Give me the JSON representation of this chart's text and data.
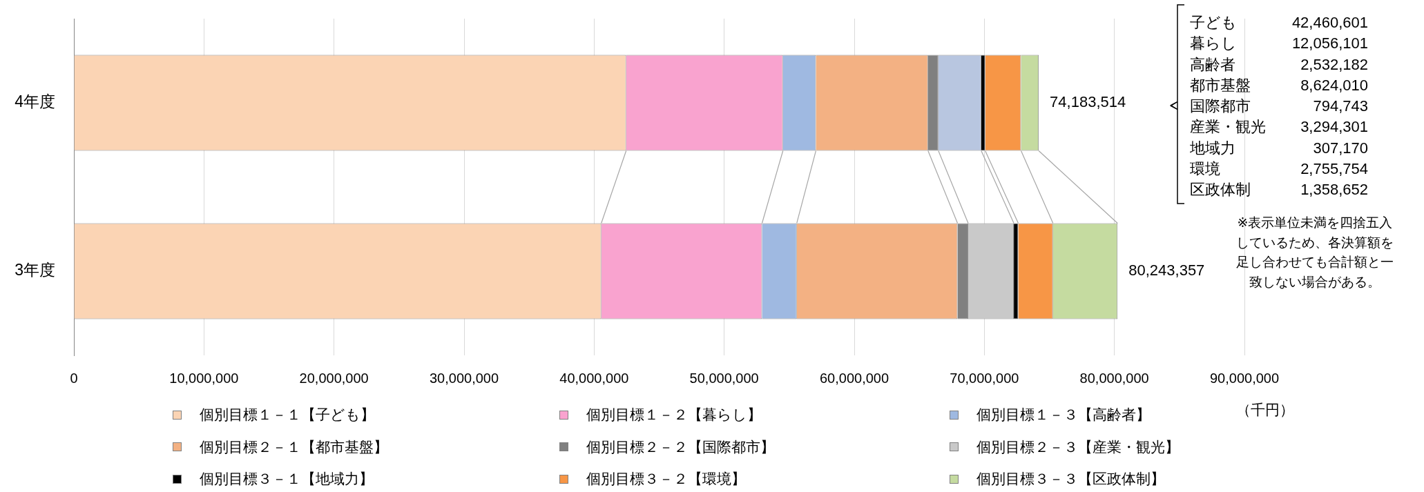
{
  "chart_data": {
    "type": "bar",
    "orientation": "horizontal",
    "stacked": true,
    "categories": [
      "4年度",
      "3年度"
    ],
    "xlim": [
      0,
      90000000
    ],
    "xticks": [
      0,
      {
        "value": 10000000,
        "label": "10,000,000"
      },
      {
        "value": 20000000,
        "label": "20,000,000"
      },
      {
        "value": 30000000,
        "label": "30,000,000"
      },
      {
        "value": 40000000,
        "label": "40,000,000"
      },
      {
        "value": 50000000,
        "label": "50,000,000"
      },
      {
        "value": 60000000,
        "label": "60,000,000"
      },
      {
        "value": 70000000,
        "label": "70,000,000"
      },
      {
        "value": 80000000,
        "label": "80,000,000"
      },
      {
        "value": 90000000,
        "label": "90,000,000"
      }
    ],
    "xlabel": "（千円）",
    "grid": "x",
    "legend": "bottom",
    "series": [
      {
        "name": "個別目標１－１【子ども】",
        "color": "#fbd4b4",
        "values": [
          42460601,
          40550000
        ]
      },
      {
        "name": "個別目標１－２【暮らし】",
        "color": "#f9a3cf",
        "values": [
          12056101,
          12360000
        ]
      },
      {
        "name": "個別目標１－３【高齢者】",
        "color": "#9fb9e1",
        "values": [
          2532182,
          2670000
        ]
      },
      {
        "name": "個別目標２－１【都市基盤】",
        "color": "#f3b183",
        "values": [
          8624010,
          12360000
        ]
      },
      {
        "name": "個別目標２－２【国際都市】",
        "color": "#808080",
        "values": [
          794743,
          820000
        ]
      },
      {
        "name": "個別目標２－３【産業・観光】",
        "color": "#c9c9c9",
        "colors": [
          "#b8c6e0",
          "#c9c9c9"
        ],
        "values": [
          3294301,
          3510000
        ]
      },
      {
        "name": "個別目標３－１【地域力】",
        "color": "#000000",
        "values": [
          307170,
          340000
        ]
      },
      {
        "name": "個別目標３－２【環境】",
        "color": "#f79646",
        "values": [
          2755754,
          2670000
        ]
      },
      {
        "name": "個別目標３－３【区政体制】",
        "color": "#c5dba0",
        "values": [
          1358652,
          4963357
        ]
      }
    ],
    "totals": [
      "74,183,514",
      "80,243,357"
    ],
    "annotations": [
      "子ども 42,460,601",
      "暮らし 12,056,101",
      "高齢者 2,532,182",
      "都市基盤 8,624,010",
      "国際都市 794,743",
      "産業・観光 3,294,301",
      "地域力 307,170",
      "環境 2,755,754",
      "区政体制 1,358,652",
      "※表示単位未満を四捨五入しているため、各決算額を足し合わせても合計額と一致しない場合がある。"
    ]
  }
}
